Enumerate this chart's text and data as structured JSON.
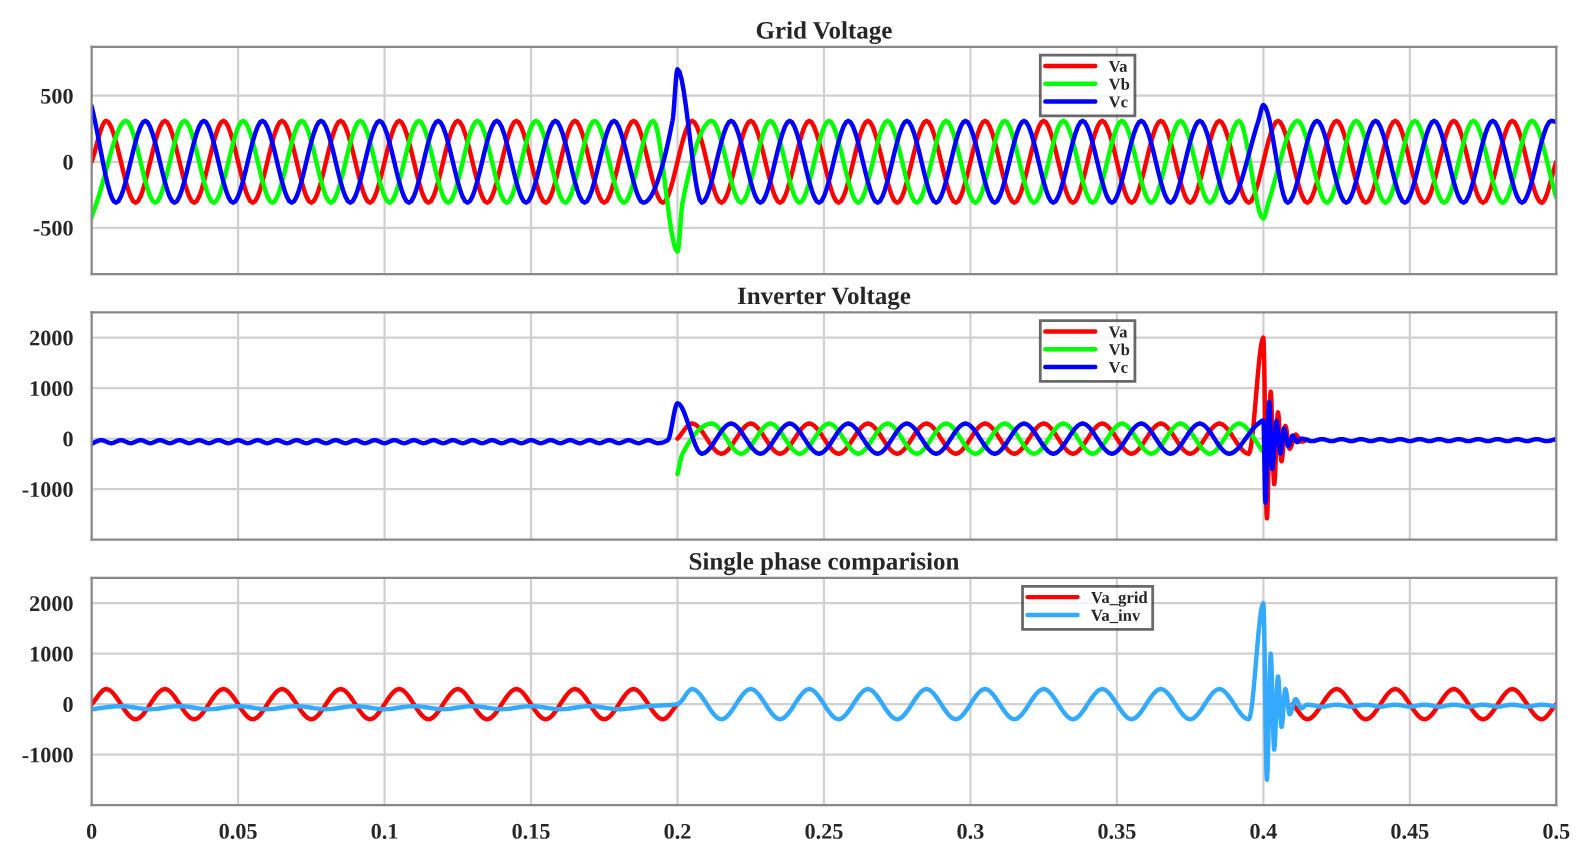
{
  "chart_data": [
    {
      "type": "line",
      "title": "Grid Voltage",
      "xlim": [
        0,
        0.5
      ],
      "xticks": [
        0,
        0.05,
        0.1,
        0.15,
        0.2,
        0.25,
        0.3,
        0.35,
        0.4,
        0.45,
        0.5
      ],
      "ylim": [
        -850,
        870
      ],
      "yticks": [
        -500,
        0,
        500
      ],
      "grid": true,
      "legend": "top",
      "tick_labels": "y",
      "series": [
        {
          "name": "Va",
          "color": "#ff0000",
          "x": [
            0,
            0.005,
            0.015,
            0.025,
            0.035,
            0.045,
            0.055,
            0.065,
            0.075,
            0.085,
            0.095,
            0.105,
            0.115,
            0.125,
            0.135,
            0.145,
            0.155,
            0.165,
            0.175,
            0.185,
            0.195,
            0.205,
            0.215,
            0.225,
            0.235,
            0.245,
            0.255,
            0.265,
            0.275,
            0.285,
            0.295,
            0.305,
            0.315,
            0.325,
            0.335,
            0.345,
            0.355,
            0.365,
            0.375,
            0.385,
            0.395,
            0.405,
            0.415,
            0.425,
            0.435,
            0.445,
            0.455,
            0.465,
            0.475,
            0.485,
            0.495,
            0.5
          ],
          "values": [
            0,
            310,
            -310,
            310,
            -310,
            310,
            -310,
            310,
            -310,
            310,
            -310,
            310,
            -310,
            310,
            -310,
            310,
            -310,
            310,
            -310,
            310,
            -310,
            310,
            -310,
            310,
            -310,
            310,
            -310,
            310,
            -310,
            310,
            -310,
            310,
            -310,
            310,
            -310,
            310,
            -310,
            310,
            -310,
            310,
            -310,
            310,
            -310,
            310,
            -310,
            310,
            -310,
            310,
            -310,
            310,
            -310,
            0
          ]
        },
        {
          "name": "Vb",
          "color": "#00ff00",
          "x": [
            0,
            0.0017,
            0.0117,
            0.0217,
            0.0317,
            0.0417,
            0.0517,
            0.0617,
            0.0717,
            0.0817,
            0.0917,
            0.1017,
            0.1117,
            0.1217,
            0.1317,
            0.1417,
            0.1517,
            0.1617,
            0.1717,
            0.1817,
            0.1917,
            0.2,
            0.2017,
            0.2117,
            0.2217,
            0.2317,
            0.2417,
            0.2517,
            0.2617,
            0.2717,
            0.2817,
            0.2917,
            0.3017,
            0.3117,
            0.3217,
            0.3317,
            0.3417,
            0.3517,
            0.3617,
            0.3717,
            0.3817,
            0.3917,
            0.4,
            0.4017,
            0.4117,
            0.4217,
            0.4317,
            0.4417,
            0.4517,
            0.4617,
            0.4717,
            0.4817,
            0.4917,
            0.5
          ],
          "values": [
            -420,
            -310,
            310,
            -310,
            310,
            -310,
            310,
            -310,
            310,
            -310,
            310,
            -310,
            310,
            -310,
            310,
            -310,
            310,
            -310,
            310,
            -310,
            310,
            -680,
            -310,
            310,
            -310,
            310,
            -310,
            310,
            -310,
            310,
            -310,
            310,
            -310,
            310,
            -310,
            310,
            -310,
            310,
            -310,
            310,
            -310,
            310,
            -430,
            -310,
            310,
            -310,
            310,
            -310,
            310,
            -310,
            310,
            -310,
            310,
            -270
          ]
        },
        {
          "name": "Vc",
          "color": "#0000ff",
          "x": [
            0,
            0.0083,
            0.0183,
            0.0283,
            0.0383,
            0.0483,
            0.0583,
            0.0683,
            0.0783,
            0.0883,
            0.0983,
            0.1083,
            0.1183,
            0.1283,
            0.1383,
            0.1483,
            0.1583,
            0.1683,
            0.1783,
            0.1883,
            0.1983,
            0.2,
            0.2083,
            0.2183,
            0.2283,
            0.2383,
            0.2483,
            0.2583,
            0.2683,
            0.2783,
            0.2883,
            0.2983,
            0.3083,
            0.3183,
            0.3283,
            0.3383,
            0.3483,
            0.3583,
            0.3683,
            0.3783,
            0.3883,
            0.3983,
            0.4,
            0.4083,
            0.4183,
            0.4283,
            0.4383,
            0.4483,
            0.4583,
            0.4683,
            0.4783,
            0.4883,
            0.4983,
            0.5
          ],
          "values": [
            420,
            -310,
            310,
            -310,
            310,
            -310,
            310,
            -310,
            310,
            -310,
            310,
            -310,
            310,
            -310,
            310,
            -310,
            310,
            -310,
            310,
            -310,
            310,
            700,
            -310,
            310,
            -310,
            310,
            -310,
            310,
            -310,
            310,
            -310,
            310,
            -310,
            310,
            -310,
            310,
            -310,
            310,
            -310,
            310,
            -310,
            310,
            430,
            -310,
            310,
            -310,
            310,
            -310,
            310,
            -310,
            310,
            -310,
            310,
            300
          ]
        }
      ]
    },
    {
      "type": "line",
      "title": "Inverter Voltage",
      "xlim": [
        0,
        0.5
      ],
      "xticks": [
        0,
        0.05,
        0.1,
        0.15,
        0.2,
        0.25,
        0.3,
        0.35,
        0.4,
        0.45,
        0.5
      ],
      "ylim": [
        -2000,
        2500
      ],
      "yticks": [
        -1000,
        0,
        1000,
        2000
      ],
      "grid": true,
      "legend": "top",
      "tick_labels": "y",
      "series": [
        {
          "name": "Va",
          "color": "#ff0000",
          "x": [
            0.2,
            0.205,
            0.215,
            0.225,
            0.235,
            0.245,
            0.255,
            0.265,
            0.275,
            0.285,
            0.295,
            0.305,
            0.315,
            0.325,
            0.335,
            0.345,
            0.355,
            0.365,
            0.375,
            0.385,
            0.395,
            0.4,
            0.4012,
            0.4025,
            0.4037,
            0.405,
            0.4062,
            0.4075,
            0.409,
            0.411,
            0.413,
            0.415
          ],
          "values": [
            0,
            300,
            -300,
            300,
            -300,
            300,
            -300,
            300,
            -300,
            300,
            -300,
            300,
            -300,
            300,
            -300,
            300,
            -300,
            300,
            -300,
            300,
            -300,
            2000,
            -1580,
            930,
            -900,
            520,
            -450,
            250,
            -200,
            80,
            -60,
            -20
          ]
        },
        {
          "name": "Vb",
          "color": "#00ff00",
          "x": [
            0.2,
            0.2017,
            0.2117,
            0.2217,
            0.2317,
            0.2417,
            0.2517,
            0.2617,
            0.2717,
            0.2817,
            0.2917,
            0.3017,
            0.3117,
            0.3217,
            0.3317,
            0.3417,
            0.3517,
            0.3617,
            0.3717,
            0.3817,
            0.3917,
            0.4
          ],
          "values": [
            -700,
            -300,
            300,
            -300,
            300,
            -300,
            300,
            -300,
            300,
            -300,
            300,
            -300,
            300,
            -300,
            300,
            -300,
            300,
            -300,
            300,
            -300,
            300,
            -260
          ]
        },
        {
          "name": "Vc",
          "color": "#0000ff",
          "x": [
            0,
            0.0033,
            0.0067,
            0.01,
            0.0133,
            0.0167,
            0.02,
            0.0233,
            0.0267,
            0.03,
            0.0333,
            0.0367,
            0.04,
            0.0433,
            0.0467,
            0.05,
            0.0533,
            0.0567,
            0.06,
            0.0633,
            0.0667,
            0.07,
            0.0733,
            0.0767,
            0.08,
            0.0833,
            0.0867,
            0.09,
            0.0933,
            0.0967,
            0.1,
            0.1033,
            0.1067,
            0.11,
            0.1133,
            0.1167,
            0.12,
            0.1233,
            0.1267,
            0.13,
            0.1333,
            0.1367,
            0.14,
            0.1433,
            0.1467,
            0.15,
            0.1533,
            0.1567,
            0.16,
            0.1633,
            0.1667,
            0.17,
            0.1733,
            0.1767,
            0.18,
            0.1833,
            0.1867,
            0.19,
            0.1933,
            0.1967,
            0.2,
            0.2083,
            0.2183,
            0.2283,
            0.2383,
            0.2483,
            0.2583,
            0.2683,
            0.2783,
            0.2883,
            0.2983,
            0.3083,
            0.3183,
            0.3283,
            0.3383,
            0.3483,
            0.3583,
            0.3683,
            0.3783,
            0.3883,
            0.3983,
            0.4,
            0.4007,
            0.402,
            0.403,
            0.4045,
            0.4058,
            0.407,
            0.4085,
            0.41,
            0.4115,
            0.413,
            0.4167,
            0.42,
            0.4233,
            0.4267,
            0.43,
            0.4333,
            0.4367,
            0.44,
            0.4433,
            0.4467,
            0.45,
            0.4533,
            0.4567,
            0.46,
            0.4633,
            0.4667,
            0.47,
            0.4733,
            0.4767,
            0.48,
            0.4833,
            0.4867,
            0.49,
            0.4933,
            0.4967,
            0.5
          ],
          "values": [
            -100,
            -30,
            -90,
            -30,
            -90,
            -30,
            -90,
            -30,
            -90,
            -30,
            -90,
            -30,
            -90,
            -30,
            -90,
            -30,
            -90,
            -30,
            -90,
            -30,
            -90,
            -30,
            -90,
            -30,
            -90,
            -30,
            -90,
            -30,
            -90,
            -30,
            -90,
            -30,
            -90,
            -30,
            -90,
            -30,
            -90,
            -30,
            -90,
            -30,
            -90,
            -30,
            -90,
            -30,
            -90,
            -30,
            -90,
            -30,
            -90,
            -30,
            -90,
            -30,
            -90,
            -30,
            -90,
            -30,
            -90,
            -30,
            -90,
            -30,
            700,
            -300,
            300,
            -300,
            300,
            -300,
            300,
            -300,
            300,
            -300,
            300,
            -300,
            300,
            -300,
            300,
            -300,
            300,
            -300,
            300,
            -300,
            300,
            360,
            -1270,
            730,
            -600,
            350,
            -300,
            200,
            -150,
            60,
            -70,
            0,
            -50,
            -10,
            -50,
            -10,
            -50,
            -10,
            -50,
            -10,
            -50,
            -10,
            -50,
            -10,
            -50,
            -10,
            -50,
            -10,
            -50,
            -10,
            -50,
            -10,
            -50,
            -10,
            -50,
            -10,
            -50,
            -10
          ]
        }
      ]
    },
    {
      "type": "line",
      "title": "Single phase comparision",
      "xlim": [
        0,
        0.5
      ],
      "xticks": [
        0,
        0.05,
        0.1,
        0.15,
        0.2,
        0.25,
        0.3,
        0.35,
        0.4,
        0.45,
        0.5
      ],
      "ylim": [
        -2000,
        2500
      ],
      "yticks": [
        -1000,
        0,
        1000,
        2000
      ],
      "grid": true,
      "legend": "top",
      "series": [
        {
          "name": "Va_grid",
          "color": "#ff0000",
          "x": [
            0,
            0.005,
            0.015,
            0.025,
            0.035,
            0.045,
            0.055,
            0.065,
            0.075,
            0.085,
            0.095,
            0.105,
            0.115,
            0.125,
            0.135,
            0.145,
            0.155,
            0.165,
            0.175,
            0.185,
            0.195,
            0.2,
            0.3,
            0.41,
            0.415,
            0.425,
            0.435,
            0.445,
            0.455,
            0.465,
            0.475,
            0.485,
            0.495,
            0.5
          ],
          "values": [
            0,
            300,
            -300,
            300,
            -300,
            300,
            -300,
            300,
            -300,
            300,
            -300,
            300,
            -300,
            300,
            -300,
            300,
            -300,
            300,
            -300,
            300,
            -300,
            0,
            null,
            0,
            -300,
            300,
            -300,
            300,
            -300,
            300,
            -300,
            300,
            -300,
            0
          ]
        },
        {
          "name": "Va_inv",
          "color": "#33aaff",
          "x": [
            0,
            0.01,
            0.02,
            0.03,
            0.04,
            0.05,
            0.06,
            0.07,
            0.08,
            0.09,
            0.1,
            0.11,
            0.12,
            0.13,
            0.14,
            0.15,
            0.16,
            0.17,
            0.18,
            0.19,
            0.2,
            0.205,
            0.215,
            0.225,
            0.235,
            0.245,
            0.255,
            0.265,
            0.275,
            0.285,
            0.295,
            0.305,
            0.315,
            0.325,
            0.335,
            0.345,
            0.355,
            0.365,
            0.375,
            0.385,
            0.395,
            0.4,
            0.4012,
            0.4025,
            0.4037,
            0.405,
            0.4062,
            0.4075,
            0.409,
            0.411,
            0.413,
            0.415,
            0.42,
            0.425,
            0.43,
            0.435,
            0.44,
            0.445,
            0.45,
            0.455,
            0.46,
            0.465,
            0.47,
            0.475,
            0.48,
            0.485,
            0.49,
            0.495,
            0.5
          ],
          "values": [
            -100,
            -40,
            -100,
            -40,
            -100,
            -40,
            -100,
            -40,
            -100,
            -40,
            -100,
            -40,
            -100,
            -40,
            -100,
            -40,
            -100,
            -40,
            -100,
            -40,
            0,
            300,
            -300,
            300,
            -300,
            300,
            -300,
            300,
            -300,
            300,
            -300,
            300,
            -300,
            300,
            -300,
            300,
            -300,
            300,
            -300,
            300,
            -300,
            2000,
            -1500,
            1000,
            -900,
            550,
            -450,
            300,
            -200,
            100,
            -80,
            -10,
            -50,
            -10,
            -50,
            -10,
            -50,
            -10,
            -50,
            -10,
            -50,
            -10,
            -50,
            -10,
            -50,
            -10,
            -50,
            -10,
            -50
          ]
        }
      ]
    }
  ]
}
